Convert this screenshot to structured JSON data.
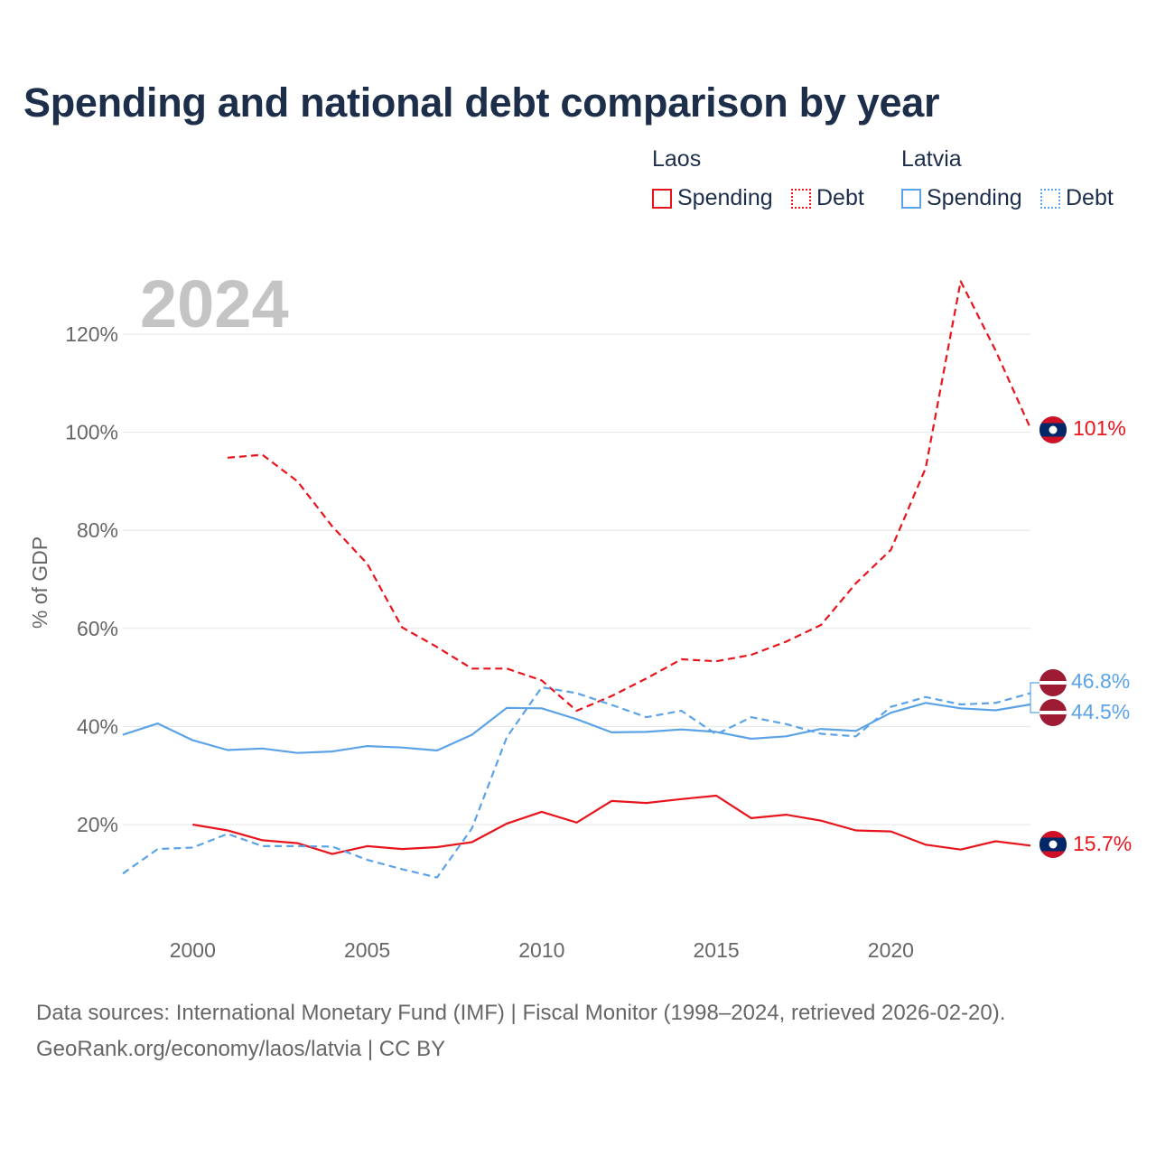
{
  "title": "Spending and national debt comparison by year",
  "colors": {
    "laos": "#e8141c",
    "latvia": "#5ba3e6",
    "grid": "#e6e6e6",
    "year": "#c4c4c4"
  },
  "legend": {
    "laos": {
      "name": "Laos",
      "spending": "Spending",
      "debt": "Debt"
    },
    "latvia": {
      "name": "Latvia",
      "spending": "Spending",
      "debt": "Debt"
    }
  },
  "footer": {
    "line1": "Data sources: International Monetary Fund (IMF) | Fiscal Monitor (1998–2024, retrieved 2026-02-20).",
    "line2": "GeoRank.org/economy/laos/latvia | CC BY"
  },
  "chart_data": {
    "type": "line",
    "title": "Spending and national debt comparison by year",
    "year_label": "2024",
    "ylabel": "% of GDP",
    "xlabel": "",
    "xlim": [
      1998,
      2024
    ],
    "ylim": [
      0,
      130
    ],
    "x_ticks": [
      2000,
      2005,
      2010,
      2015,
      2020
    ],
    "x_tick_labels": [
      "2000",
      "2005",
      "2010",
      "2015",
      "2020"
    ],
    "y_ticks": [
      20,
      40,
      60,
      80,
      100,
      120
    ],
    "y_tick_labels": [
      "20%",
      "40%",
      "60%",
      "80%",
      "100%",
      "120%"
    ],
    "grid": true,
    "series": [
      {
        "name": "Laos Spending",
        "color": "#e8141c",
        "dashed": false,
        "end_label": "15.7%",
        "x": [
          2000,
          2001,
          2002,
          2003,
          2004,
          2005,
          2006,
          2007,
          2008,
          2009,
          2010,
          2011,
          2012,
          2013,
          2014,
          2015,
          2016,
          2017,
          2018,
          2019,
          2020,
          2021,
          2022,
          2023,
          2024
        ],
        "values": [
          20.0,
          18.8,
          16.8,
          16.2,
          14.0,
          15.6,
          15.0,
          15.4,
          16.4,
          20.2,
          22.6,
          20.4,
          24.8,
          24.4,
          25.2,
          25.9,
          21.3,
          22.0,
          20.8,
          18.8,
          18.6,
          15.9,
          14.9,
          16.6,
          15.7
        ]
      },
      {
        "name": "Laos Debt",
        "color": "#e8141c",
        "dashed": true,
        "end_label": "101%",
        "x": [
          2001,
          2002,
          2003,
          2004,
          2005,
          2006,
          2007,
          2008,
          2009,
          2010,
          2011,
          2012,
          2013,
          2014,
          2015,
          2016,
          2017,
          2018,
          2019,
          2020,
          2021,
          2022,
          2023,
          2024
        ],
        "values": [
          94.8,
          95.4,
          90.0,
          80.8,
          73.2,
          60.2,
          56.2,
          51.8,
          51.8,
          49.4,
          43.2,
          46.2,
          49.8,
          53.7,
          53.3,
          54.6,
          57.3,
          60.7,
          69.2,
          76.0,
          92.7,
          130.8,
          116.7,
          100.8
        ]
      },
      {
        "name": "Latvia Spending",
        "color": "#5ba3e6",
        "dashed": false,
        "end_label": "44.5%",
        "x": [
          1998,
          1999,
          2000,
          2001,
          2002,
          2003,
          2004,
          2005,
          2006,
          2007,
          2008,
          2009,
          2010,
          2011,
          2012,
          2013,
          2014,
          2015,
          2016,
          2017,
          2018,
          2019,
          2020,
          2021,
          2022,
          2023,
          2024
        ],
        "values": [
          38.3,
          40.6,
          37.2,
          35.2,
          35.5,
          34.6,
          34.9,
          36.0,
          35.7,
          35.1,
          38.3,
          43.8,
          43.7,
          41.5,
          38.8,
          38.9,
          39.4,
          38.9,
          37.5,
          38.0,
          39.5,
          39.1,
          42.8,
          44.8,
          43.7,
          43.3,
          44.5
        ]
      },
      {
        "name": "Latvia Debt",
        "color": "#5ba3e6",
        "dashed": true,
        "end_label": "46.8%",
        "x": [
          1998,
          1999,
          2000,
          2001,
          2002,
          2003,
          2004,
          2005,
          2006,
          2007,
          2008,
          2009,
          2010,
          2011,
          2012,
          2013,
          2014,
          2015,
          2016,
          2017,
          2018,
          2019,
          2020,
          2021,
          2022,
          2023,
          2024
        ],
        "values": [
          10.0,
          15.0,
          15.3,
          18.1,
          15.6,
          15.6,
          15.5,
          12.8,
          10.9,
          9.2,
          19.2,
          37.8,
          48.0,
          46.8,
          44.4,
          41.9,
          43.2,
          38.4,
          41.9,
          40.5,
          38.5,
          38.0,
          44.0,
          46.0,
          44.5,
          44.8,
          46.8
        ]
      }
    ]
  }
}
